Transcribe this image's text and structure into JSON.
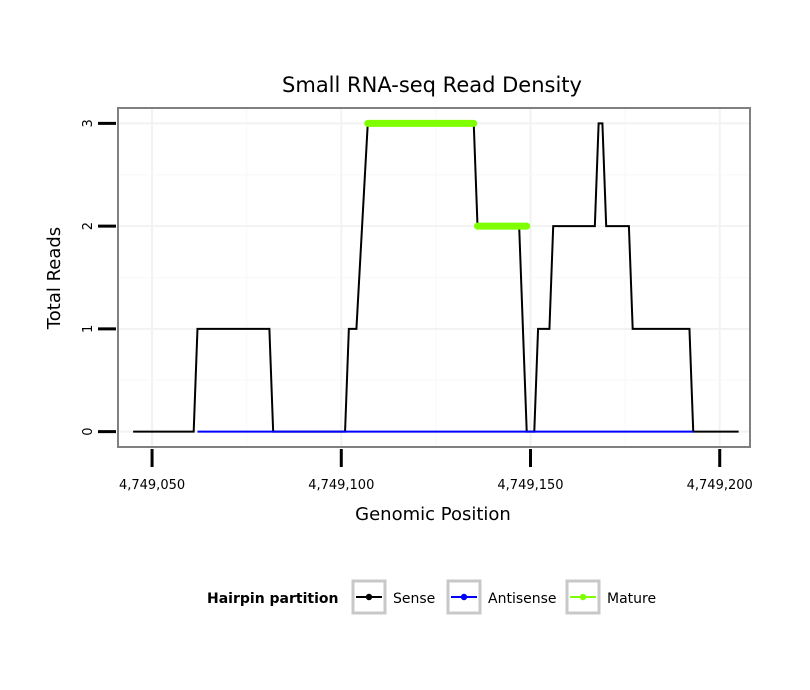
{
  "chart_data": {
    "type": "line",
    "title": "Small RNA-seq Read Density",
    "xlabel": "Genomic Position",
    "ylabel": "Total Reads",
    "xlim": [
      4749041,
      4749208
    ],
    "ylim": [
      -0.15,
      3.15
    ],
    "x_ticks": [
      4749050,
      4749100,
      4749150,
      4749200
    ],
    "x_tick_labels": [
      "4,749,050",
      "4,749,100",
      "4,749,150",
      "4,749,200"
    ],
    "y_ticks": [
      0,
      1,
      2,
      3
    ],
    "y_tick_labels": [
      "0",
      "1",
      "2",
      "3"
    ],
    "grid": true,
    "legend": {
      "title": "Hairpin partition",
      "position": "bottom",
      "entries": [
        {
          "label": "Sense",
          "color": "#000000"
        },
        {
          "label": "Antisense",
          "color": "#0000ff"
        },
        {
          "label": "Mature",
          "color": "#7fff00"
        }
      ]
    },
    "series": [
      {
        "name": "Sense",
        "color": "#000000",
        "x": [
          4749045,
          4749061,
          4749062,
          4749081,
          4749082,
          4749101,
          4749102,
          4749104,
          4749107,
          4749135,
          4749136,
          4749147,
          4749149,
          4749151,
          4749152,
          4749155,
          4749156,
          4749167,
          4749168,
          4749169,
          4749170,
          4749176,
          4749177,
          4749192,
          4749193,
          4749205
        ],
        "y": [
          0,
          0,
          1,
          1,
          0,
          0,
          1,
          1,
          3,
          3,
          2,
          2,
          0,
          0,
          1,
          1,
          2,
          2,
          3,
          3,
          2,
          2,
          1,
          1,
          0,
          0
        ]
      },
      {
        "name": "Antisense",
        "color": "#0000ff",
        "x": [
          4749062,
          4749193
        ],
        "y": [
          0,
          0
        ]
      },
      {
        "name": "Mature",
        "color": "#7fff00",
        "segments": [
          {
            "x": [
              4749107,
              4749135
            ],
            "y": [
              3,
              3
            ]
          },
          {
            "x": [
              4749136,
              4749149
            ],
            "y": [
              2,
              2
            ]
          }
        ]
      }
    ]
  }
}
